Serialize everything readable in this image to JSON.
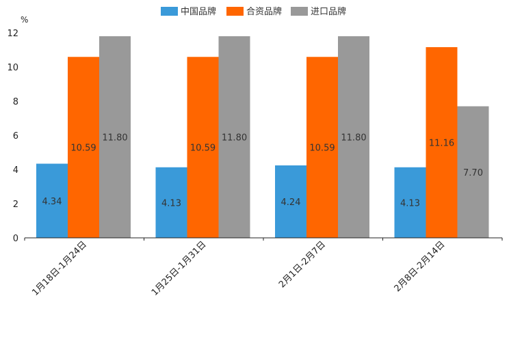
{
  "chart_data": {
    "type": "bar",
    "unit": "%",
    "categories": [
      "1月18日-1月24日",
      "1月25日-1月31日",
      "2月1日-2月7日",
      "2月8日-2月14日"
    ],
    "series": [
      {
        "name": "中国品牌",
        "color": "#3a9ad9",
        "values": [
          4.34,
          4.13,
          4.24,
          4.13
        ]
      },
      {
        "name": "合资品牌",
        "color": "#ff6600",
        "values": [
          10.59,
          10.59,
          10.59,
          11.16
        ]
      },
      {
        "name": "进口品牌",
        "color": "#999999",
        "values": [
          11.8,
          11.8,
          11.8,
          7.7
        ]
      }
    ],
    "value_labels": [
      [
        "4.34",
        "4.13",
        "4.24",
        "4.13"
      ],
      [
        "10.59",
        "10.59",
        "10.59",
        "11.16"
      ],
      [
        "11.80",
        "11.80",
        "11.80",
        "7.70"
      ]
    ],
    "yticks": [
      "0",
      "2",
      "4",
      "6",
      "8",
      "10",
      "12"
    ],
    "ylim": [
      0,
      12
    ],
    "legend_position": "top-center"
  }
}
